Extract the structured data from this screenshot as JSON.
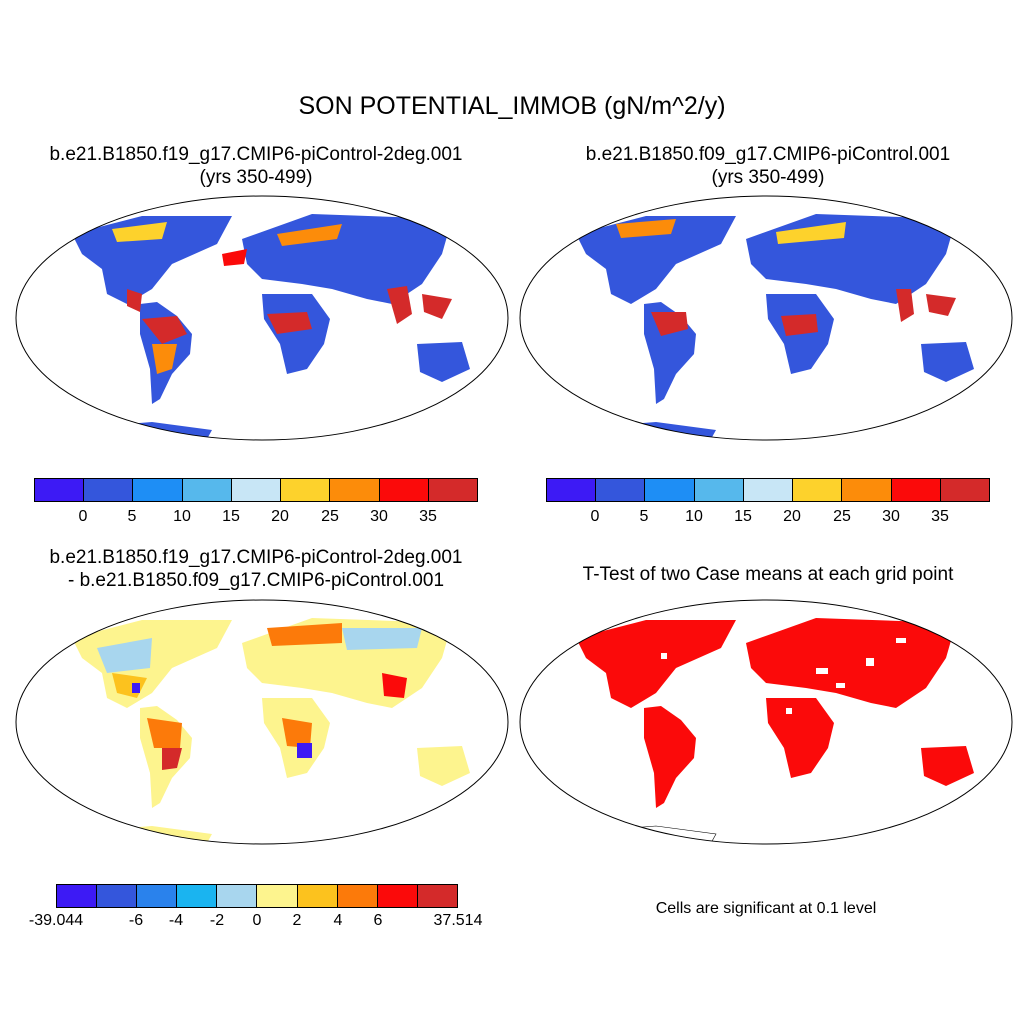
{
  "figure": {
    "title": "SON POTENTIAL_IMMOB (gN/m^2/y)"
  },
  "panels": [
    {
      "title_line1": "b.e21.B1850.f19_g17.CMIP6-piControl-2deg.001",
      "title_line2": "(yrs 350-499)",
      "colorbar": {
        "colors": [
          "#3d1af5",
          "#3456dc",
          "#1e8ef5",
          "#56b8ec",
          "#c8e6f6",
          "#fdd22c",
          "#fc8c0a",
          "#fb0a0a",
          "#d42a2a"
        ],
        "labels": [
          "0",
          "5",
          "10",
          "15",
          "20",
          "25",
          "30",
          "35"
        ]
      }
    },
    {
      "title_line1": "b.e21.B1850.f09_g17.CMIP6-piControl.001",
      "title_line2": "(yrs 350-499)",
      "colorbar": {
        "colors": [
          "#3d1af5",
          "#3456dc",
          "#1e8ef5",
          "#56b8ec",
          "#c8e6f6",
          "#fdd22c",
          "#fc8c0a",
          "#fb0a0a",
          "#d42a2a"
        ],
        "labels": [
          "0",
          "5",
          "10",
          "15",
          "20",
          "25",
          "30",
          "35"
        ]
      }
    },
    {
      "title_line1": "b.e21.B1850.f19_g17.CMIP6-piControl-2deg.001",
      "title_line2": "- b.e21.B1850.f09_g17.CMIP6-piControl.001",
      "colorbar": {
        "colors": [
          "#3d1af5",
          "#3456dc",
          "#2a82ec",
          "#1ab4f0",
          "#a8d6ee",
          "#fdf48e",
          "#fcc21e",
          "#fc7a0a",
          "#fb0a0a",
          "#d42a2a"
        ],
        "labels": [
          "-39.044",
          "-6",
          "-4",
          "-2",
          "0",
          "2",
          "4",
          "6",
          "37.514"
        ]
      }
    },
    {
      "title_line1": "T-Test of two Case means at each grid point",
      "note": "Cells are significant at 0.1 level",
      "colors": {
        "significant": "#fb0a0a"
      }
    }
  ]
}
